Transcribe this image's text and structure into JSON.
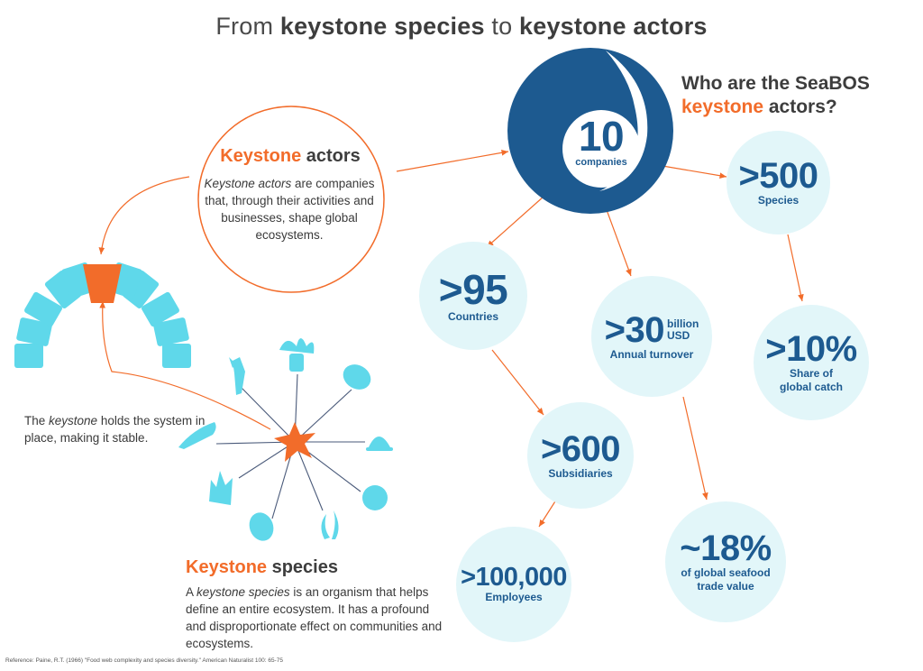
{
  "title": {
    "part1": "From ",
    "bold1": "keystone species",
    "part2": " to ",
    "bold2": "keystone actors"
  },
  "who": {
    "line1": "Who are the SeaBOS",
    "highlight": "keystone",
    "line2_rest": " actors?"
  },
  "keystone_actors": {
    "heading_highlight": "Keystone",
    "heading_rest": " actors",
    "body_italic": "Keystone actors",
    "body_rest": " are companies that, through their activities and businesses, shape global ecosystems."
  },
  "keystone_note": {
    "pre": "The ",
    "italic": "keystone",
    "post": " holds the system in place, making it stable."
  },
  "keystone_species": {
    "heading_highlight": "Keystone",
    "heading_rest": " species",
    "body_pre": "A ",
    "body_italic": "keystone species",
    "body_rest": " is an organism that helps define an entire ecosystem. It has a profound and disproportionate effect on communities and ecosystems."
  },
  "stats": {
    "companies": {
      "value": "10",
      "label": "companies"
    },
    "species": {
      "value": ">500",
      "label": "Species"
    },
    "countries": {
      "value": ">95",
      "label": "Countries"
    },
    "turnover": {
      "value": ">30",
      "unit1": "billion",
      "unit2": "USD",
      "label": "Annual turnover"
    },
    "catch": {
      "value": ">10%",
      "label1": "Share of",
      "label2": "global catch"
    },
    "subsidiaries": {
      "value": ">600",
      "label": "Subsidiaries"
    },
    "employees": {
      "value": ">100,000",
      "label": "Employees"
    },
    "trade": {
      "value": "~18%",
      "label1": "of global seafood",
      "label2": "trade value"
    }
  },
  "reference": "Reference: Paine, R.T. (1966) \"Food web complexity and species diversity.\" American Naturalist 100: 65-75",
  "colors": {
    "orange": "#f26c2a",
    "navy": "#1d5a90",
    "bubble": "#e2f6f9",
    "stone": "#5fd8ea",
    "line": "#4a5a7a"
  },
  "icons": [
    "lobster-icon",
    "anemone-icon",
    "oyster-icon",
    "limpet-icon",
    "sponge-icon",
    "kelp-icon",
    "mussel-icon",
    "coral-icon",
    "nudibranch-icon",
    "starfish-icon",
    "arch-icon"
  ]
}
